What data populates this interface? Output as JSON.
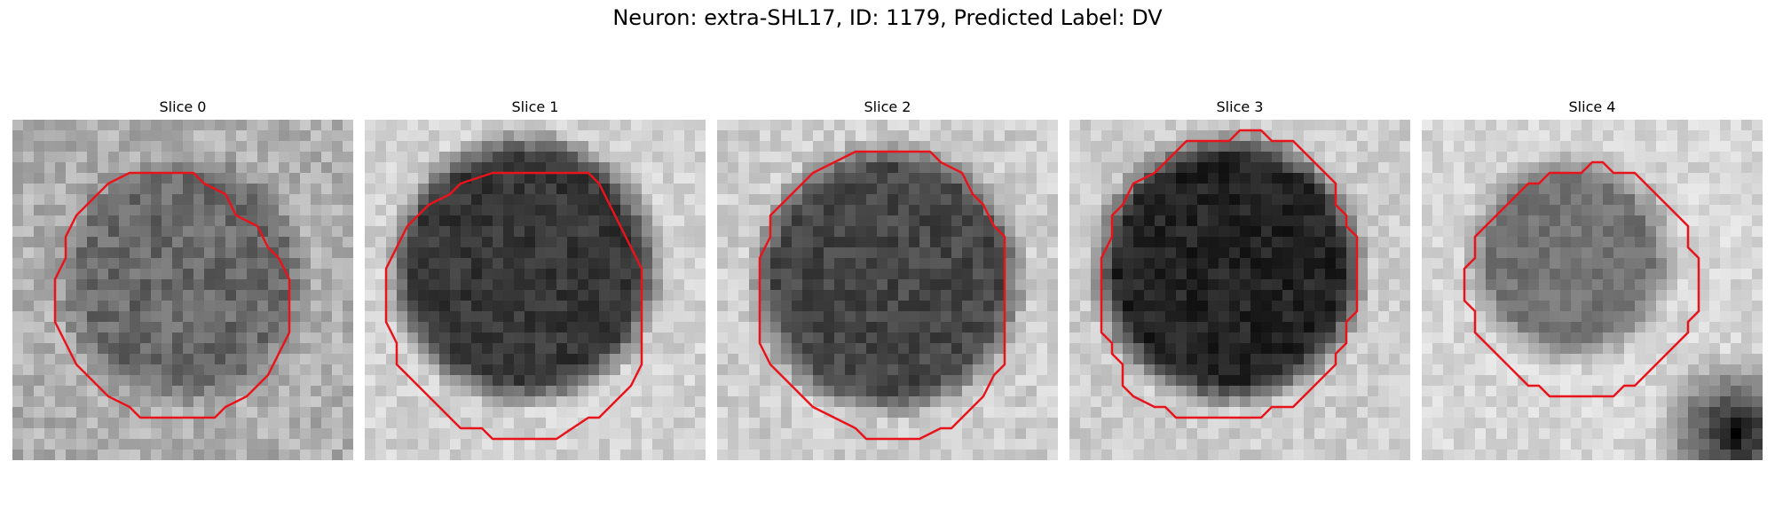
{
  "figure": {
    "title": "Neuron: extra-SHL17, ID: 1179, Predicted Label: DV"
  },
  "slices": [
    {
      "title": "Slice 0"
    },
    {
      "title": "Slice 1"
    },
    {
      "title": "Slice 2"
    },
    {
      "title": "Slice 3"
    },
    {
      "title": "Slice 4"
    }
  ],
  "colors": {
    "contour": "#e8141c",
    "background": "#ffffff"
  }
}
